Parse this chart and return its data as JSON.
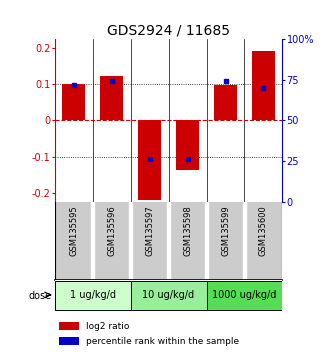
{
  "title": "GDS2924 / 11685",
  "samples": [
    "GSM135595",
    "GSM135596",
    "GSM135597",
    "GSM135598",
    "GSM135599",
    "GSM135600"
  ],
  "log2_ratios": [
    0.1,
    0.122,
    -0.22,
    -0.138,
    0.098,
    0.193
  ],
  "percentile_ranks": [
    72,
    74,
    26,
    26,
    74,
    70
  ],
  "ylim_left": [
    -0.225,
    0.225
  ],
  "ylim_right": [
    0,
    100
  ],
  "yticks_left": [
    -0.2,
    -0.1,
    0,
    0.1,
    0.2
  ],
  "yticks_right": [
    0,
    25,
    50,
    75,
    100
  ],
  "ytick_labels_right": [
    "0",
    "25",
    "50",
    "75",
    "100%"
  ],
  "bar_color": "#cc0000",
  "dot_color": "#0000cc",
  "dose_groups": [
    {
      "label": "1 ug/kg/d",
      "cols": [
        0,
        1
      ],
      "color": "#ccffcc"
    },
    {
      "label": "10 ug/kg/d",
      "cols": [
        2,
        3
      ],
      "color": "#99ee99"
    },
    {
      "label": "1000 ug/kg/d",
      "cols": [
        4,
        5
      ],
      "color": "#55dd55"
    }
  ],
  "dose_label": "dose",
  "legend_red": "log2 ratio",
  "legend_blue": "percentile rank within the sample",
  "title_fontsize": 10,
  "tick_fontsize": 7,
  "sample_fontsize": 6,
  "dose_fontsize": 7,
  "legend_fontsize": 6.5
}
